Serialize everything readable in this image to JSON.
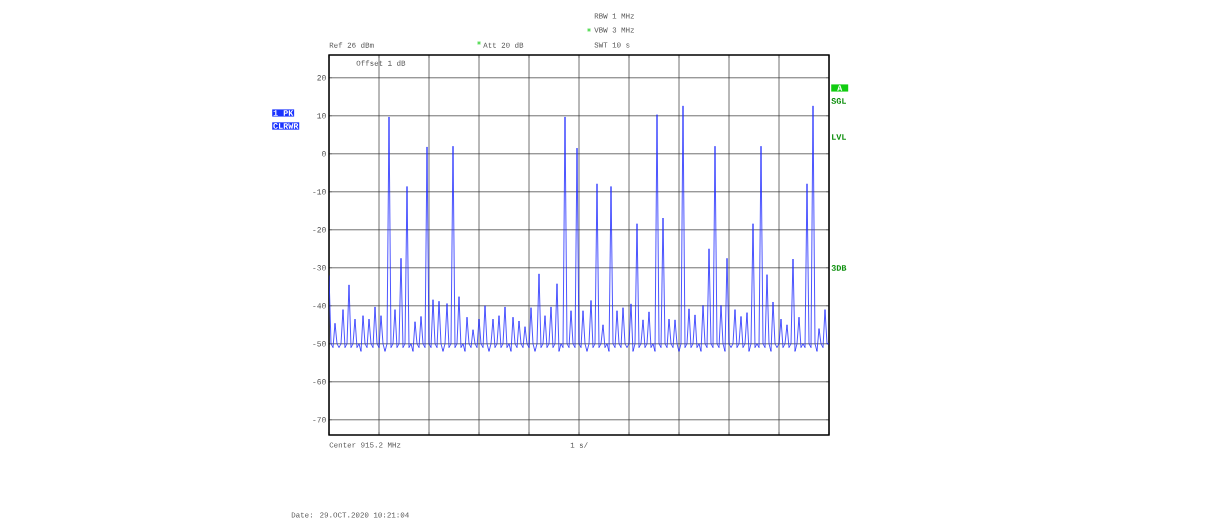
{
  "chart_data": {
    "type": "line",
    "color": "#1f2bff",
    "line_style": "solid",
    "grid": true,
    "tick_labels": "y",
    "ylim": [
      -74,
      26
    ],
    "yticks": [
      -70,
      -60,
      -50,
      -40,
      -30,
      -20,
      -10,
      0,
      10,
      20
    ],
    "categories": [
      null,
      null,
      null,
      null,
      null,
      null,
      null,
      null,
      null,
      null,
      null,
      null,
      null,
      null,
      null,
      null,
      null,
      null,
      null,
      null,
      null,
      null,
      null,
      null,
      null,
      null,
      null,
      null,
      null,
      null,
      null,
      null,
      null,
      null,
      null,
      null,
      null,
      null,
      null,
      null,
      null,
      null,
      null,
      null,
      null,
      null,
      null,
      null,
      null,
      null,
      null,
      null,
      null,
      null,
      null,
      null,
      null,
      null,
      null,
      null,
      null,
      null,
      null,
      null,
      null,
      null,
      null,
      null,
      null,
      null,
      null,
      null,
      null,
      null,
      null,
      null,
      null,
      null,
      null,
      null,
      null,
      null,
      null,
      null,
      null,
      null,
      null,
      null,
      null,
      null,
      null,
      null,
      null,
      null,
      null,
      null,
      null,
      null,
      null,
      null,
      null,
      null,
      null,
      null,
      null,
      null,
      null,
      null,
      null,
      null,
      null,
      null,
      null,
      null,
      null,
      null,
      null,
      null,
      null,
      null,
      null,
      null,
      null,
      null,
      null,
      null,
      null,
      null,
      null,
      null,
      null,
      null,
      null,
      null,
      null,
      null,
      null,
      null,
      null,
      null,
      null,
      null,
      null,
      null,
      null,
      null,
      null,
      null,
      null,
      null,
      null,
      null,
      null,
      null,
      null,
      null,
      null,
      null,
      null,
      null,
      null,
      null,
      null,
      null,
      null,
      null,
      null,
      null,
      null,
      null,
      null,
      null,
      null,
      null,
      null,
      null,
      null,
      null,
      null,
      null,
      null,
      null,
      null,
      null,
      null,
      null,
      null,
      null,
      null,
      null,
      null,
      null,
      null,
      null,
      null,
      null,
      null,
      null,
      null,
      null,
      null,
      null,
      null,
      null,
      null,
      null,
      null,
      null,
      null,
      null,
      null,
      null,
      null,
      null,
      null,
      null,
      null,
      null,
      null,
      null,
      null,
      null,
      null,
      null,
      null,
      null,
      null,
      null,
      null,
      null,
      null,
      null,
      null,
      null,
      null,
      null,
      null,
      null,
      null,
      null,
      null,
      null,
      null,
      null,
      null,
      null,
      null,
      null,
      null,
      null,
      null
    ],
    "values": [
      -32,
      -50,
      -51,
      -44.6,
      -50,
      -51,
      -50,
      -41,
      -51,
      -50,
      -34.5,
      -51,
      -50,
      -43.5,
      -51,
      -50,
      -52,
      -42.6,
      -50,
      -51,
      -43.5,
      -50,
      -51,
      -40.3,
      -50,
      -51,
      -42.6,
      -50,
      -52,
      -50,
      9.7,
      -51,
      -50,
      -41,
      -51,
      -50,
      -27.5,
      -51,
      -50,
      -8.6,
      -51,
      -50,
      -52,
      -44.2,
      -50,
      -51,
      -42.8,
      -50,
      -51,
      1.8,
      -50,
      -51,
      -38.4,
      -50,
      -51,
      -38.8,
      -50,
      -52,
      -50,
      -39.4,
      -51,
      -50,
      2,
      -51,
      -50,
      -37.6,
      -51,
      -50,
      -52,
      -43,
      -50,
      -51,
      -46.3,
      -50,
      -51,
      -43.5,
      -50,
      -51,
      -40,
      -50,
      -52,
      -50,
      -43.5,
      -51,
      -50,
      -42.6,
      -51,
      -50,
      -40.3,
      -51,
      -50,
      -52,
      -43,
      -50,
      -51,
      -44,
      -50,
      -51,
      -45.5,
      -50,
      -51,
      -40.5,
      -50,
      -52,
      -50,
      -31.6,
      -51,
      -50,
      -42.6,
      -51,
      -50,
      -40.3,
      -51,
      -50,
      -34.2,
      -52,
      -50,
      -51,
      9.7,
      -50,
      -51,
      -41.3,
      -50,
      -51,
      1.5,
      -50,
      -51,
      -41.3,
      -50,
      -52,
      -50,
      -38.6,
      -51,
      -50,
      -7.9,
      -51,
      -50,
      -45,
      -51,
      -50,
      -52,
      -8.6,
      -50,
      -51,
      -41.3,
      -50,
      -51,
      -40.5,
      -50,
      -51,
      -50,
      -39.5,
      -52,
      -50,
      -18.4,
      -51,
      -50,
      -43.7,
      -51,
      -50,
      -41.6,
      -51,
      -50,
      -52,
      10.3,
      -50,
      -51,
      -16.9,
      -50,
      -51,
      -43.5,
      -50,
      -51,
      -43.7,
      -50,
      -52,
      -50,
      12.6,
      -51,
      -50,
      -40.8,
      -51,
      -50,
      -42.4,
      -51,
      -50,
      -52,
      -39.9,
      -50,
      -51,
      -25,
      -50,
      -51,
      2,
      -50,
      -51,
      -39.9,
      -50,
      -52,
      -27.5,
      -50,
      -51,
      -50,
      -41,
      -51,
      -50,
      -42.8,
      -51,
      -50,
      -41.8,
      -52,
      -50,
      -18.4,
      -51,
      -50,
      -51,
      2,
      -50,
      -51,
      -31.8,
      -50,
      -52,
      -39,
      -50,
      -51,
      -50,
      -43.5,
      -51,
      -50,
      -45,
      -51,
      -50,
      -27.7,
      -52,
      -50,
      -43,
      -51,
      -50,
      -51,
      -7.9,
      -50,
      -51,
      12.6,
      -50,
      -52,
      -46,
      -50,
      -51,
      -41,
      -50,
      -50
    ],
    "annotations": [
      "Ref 26 dBm",
      "Att 20 dB",
      "RBW 1 MHz",
      "VBW 3 MHz",
      "SWT 10 s",
      "Offset 1 dB",
      "1 PK",
      "CLRWR",
      "A",
      "SGL",
      "LVL",
      "3DB",
      "Center 915.2 MHz",
      "1 s/",
      "Date: 29.OCT.2020 10:21:04"
    ]
  }
}
